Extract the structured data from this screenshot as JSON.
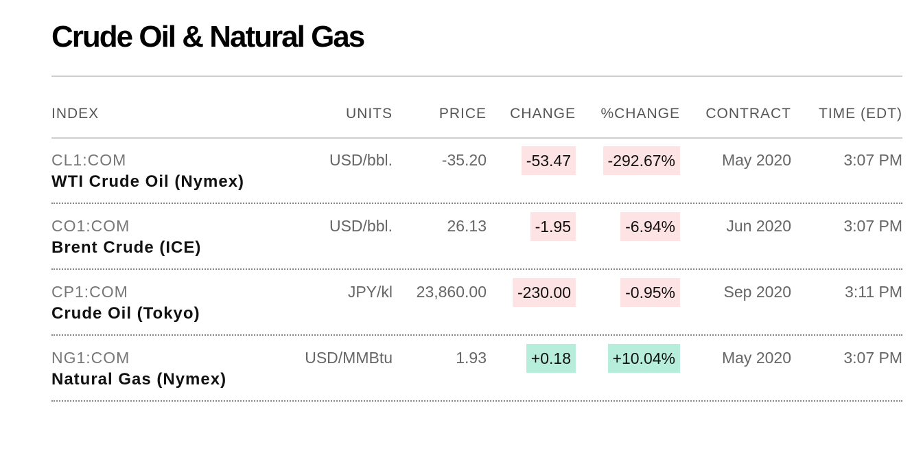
{
  "title": "Crude Oil & Natural Gas",
  "columns": {
    "index": "INDEX",
    "units": "UNITS",
    "price": "PRICE",
    "change": "CHANGE",
    "pct_change": "%CHANGE",
    "contract": "CONTRACT",
    "time": "TIME (EDT)"
  },
  "rows": [
    {
      "ticker": "CL1:COM",
      "name": "WTI Crude Oil (Nymex)",
      "units": "USD/bbl.",
      "price": "-35.20",
      "change": "-53.47",
      "pct_change": "-292.67%",
      "direction": "down",
      "contract": "May 2020",
      "time": "3:07 PM"
    },
    {
      "ticker": "CO1:COM",
      "name": "Brent Crude (ICE)",
      "units": "USD/bbl.",
      "price": "26.13",
      "change": "-1.95",
      "pct_change": "-6.94%",
      "direction": "down",
      "contract": "Jun 2020",
      "time": "3:07 PM"
    },
    {
      "ticker": "CP1:COM",
      "name": "Crude Oil (Tokyo)",
      "units": "JPY/kl",
      "price": "23,860.00",
      "change": "-230.00",
      "pct_change": "-0.95%",
      "direction": "down",
      "contract": "Sep 2020",
      "time": "3:11 PM"
    },
    {
      "ticker": "NG1:COM",
      "name": "Natural Gas (Nymex)",
      "units": "USD/MMBtu",
      "price": "1.93",
      "change": "+0.18",
      "pct_change": "+10.04%",
      "direction": "up",
      "contract": "May 2020",
      "time": "3:07 PM"
    }
  ],
  "colors": {
    "negative_bg": "#fde3e3",
    "positive_bg": "#b6eedb"
  }
}
